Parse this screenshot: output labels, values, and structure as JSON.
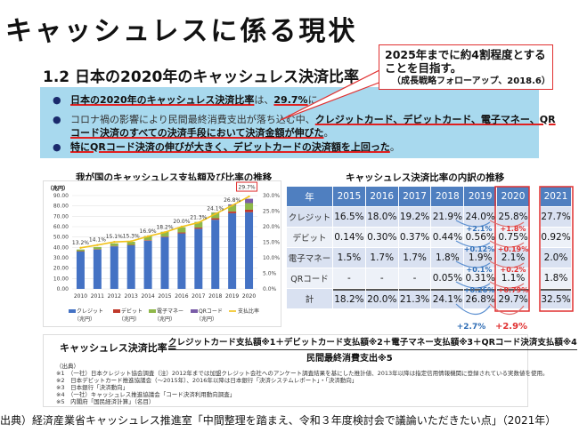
{
  "title": "キャッシュレスに係る現状",
  "subtitle": "1.2 日本の2020年のキャッシュレス決済比率",
  "callout": {
    "line1": "2025年までに約4割程度とする",
    "line2": "ことを目指す。",
    "source": "（成長戦略フォローアップ、2018.6）"
  },
  "bullets": [
    {
      "parts": [
        "日本の2020年のキャッシュレス決済比率",
        "は、",
        "29.7%",
        "に。"
      ]
    },
    {
      "parts": [
        "コロナ禍の影響により民間最終消費支出が落ち込む中、",
        "クレジットカード、デビットカード、電子マネー、QR",
        "コード決済のすべての決済手段において決済金額が伸びた",
        "。"
      ]
    },
    {
      "parts": [
        "特にQRコード決済の伸びが大きく、デビットカードの決済額を上回った",
        "。"
      ]
    }
  ],
  "colors": {
    "credit": "#4472c4",
    "debit": "#c0392b",
    "emoney": "#8fb84a",
    "qr": "#7a5ca8",
    "ratio": "#f2c21b",
    "accent": "#e03030",
    "header": "#4f7fc0"
  },
  "chart_data": {
    "type": "bar",
    "title": "我が国のキャッシュレス支払額及び比率の推移",
    "ylabel": "（兆円）",
    "ylim": [
      0,
      90
    ],
    "y2lim": [
      0,
      30
    ],
    "yticks": [
      "0.00",
      "10.00",
      "20.00",
      "30.00",
      "40.00",
      "50.00",
      "60.00",
      "70.00",
      "80.00",
      "90.00"
    ],
    "y2ticks": [
      "0.0%",
      "5.0%",
      "10.0%",
      "15.0%",
      "20.0%",
      "25.0%",
      "30.0%"
    ],
    "categories": [
      "2010",
      "2011",
      "2012",
      "2013",
      "2014",
      "2015",
      "2016",
      "2017",
      "2018",
      "2019",
      "2020"
    ],
    "series": [
      {
        "name": "クレジット",
        "unit": "（兆円）",
        "key": "credit",
        "values": [
          36,
          38,
          41,
          42,
          46.5,
          50,
          53.5,
          58,
          66.7,
          73,
          74
        ]
      },
      {
        "name": "デビット",
        "unit": "（兆円）",
        "key": "debit",
        "values": [
          0.4,
          0.4,
          0.4,
          0.4,
          0.5,
          0.5,
          0.9,
          1.1,
          1.4,
          1.7,
          2.3
        ]
      },
      {
        "name": "電子マネー",
        "unit": "（兆円）",
        "key": "emoney",
        "values": [
          1.6,
          2,
          2.5,
          3,
          4,
          4.6,
          5.1,
          5.5,
          5.5,
          5.8,
          6.4
        ]
      },
      {
        "name": "QRコード",
        "unit": "（兆円）",
        "key": "qr",
        "values": [
          0,
          0,
          0,
          0,
          0,
          0,
          0,
          0,
          0.2,
          1,
          4.2
        ]
      }
    ],
    "line": {
      "name": "支払比率",
      "values": [
        13.2,
        14.1,
        15.1,
        15.3,
        16.9,
        18.2,
        20.0,
        21.3,
        24.1,
        26.8,
        29.7
      ],
      "labels": [
        "13.2%",
        "14.1%",
        "15.1%",
        "15.3%",
        "16.9%",
        "18.2%",
        "20.0%",
        "21.3%",
        "24.1%",
        "26.8%",
        "29.7%"
      ]
    }
  },
  "table": {
    "title": "キャッシュレス決済比率の内訳の推移",
    "headers": [
      "年",
      "2015",
      "2016",
      "2017",
      "2018",
      "2019",
      "2020"
    ],
    "rows": [
      {
        "label": "クレジット",
        "values": [
          "16.5%",
          "18.0%",
          "19.2%",
          "21.9%",
          "24.0%",
          "25.8%"
        ],
        "d2019": "+2.1%",
        "d2020": "+1.8%"
      },
      {
        "label": "デビット",
        "values": [
          "0.14%",
          "0.30%",
          "0.37%",
          "0.44%",
          "0.56%",
          "0.75%"
        ],
        "d2019": "+0.12%",
        "d2020": "+0.19%"
      },
      {
        "label": "電子マネー",
        "values": [
          "1.5%",
          "1.7%",
          "1.7%",
          "1.8%",
          "1.9%",
          "2.1%"
        ],
        "d2019": "+0.1%",
        "d2020": "+0.2%"
      },
      {
        "label": "QRコード",
        "values": [
          "-",
          "-",
          "-",
          "0.05%",
          "0.31%",
          "1.1%"
        ],
        "d2019": "+0.26%",
        "d2020": "+0.79%"
      },
      {
        "label": "計",
        "values": [
          "18.2%",
          "20.0%",
          "21.3%",
          "24.1%",
          "26.8%",
          "29.7%"
        ],
        "d2019": "+2.7%",
        "d2020": "+2.9%"
      }
    ],
    "col2021": {
      "header": "2021",
      "values": [
        "27.7%",
        "0.92%",
        "2.0%",
        "1.8%",
        "32.5%"
      ]
    }
  },
  "formula": {
    "lhs": "キャッシュレス決済比率＝",
    "numerator": "クレジットカード支払額※1＋デビットカード支払額※2＋電子マネー支払額※3＋QRコード決済支払額※4",
    "denominator": "民間最終消費支出※5",
    "notes_title": "（出典）",
    "notes": [
      "※1　（一社）日本クレジット協会調査（注）2012年までは加盟クレジット会社へのアンケート調査結果を基にした推計値、2013年以降は指定信用情報機関に登録されている実数値を使用。",
      "※2　日本デビットカード推進協議会（〜2015年）、2016年以降は日本銀行「決済システムレポート」・「決済動向」",
      "※3　日本銀行「決済動向」",
      "※4　（一社）キャッシュレス推進協議会「コード決済利用動向調査」",
      "※5　内閣府「国民経済計算」（名目）"
    ]
  },
  "source": "出典）経済産業省キャッシュレス推進室「中間整理を踏まえ、令和３年度検討会で議論いただきたい点」（2021年）"
}
